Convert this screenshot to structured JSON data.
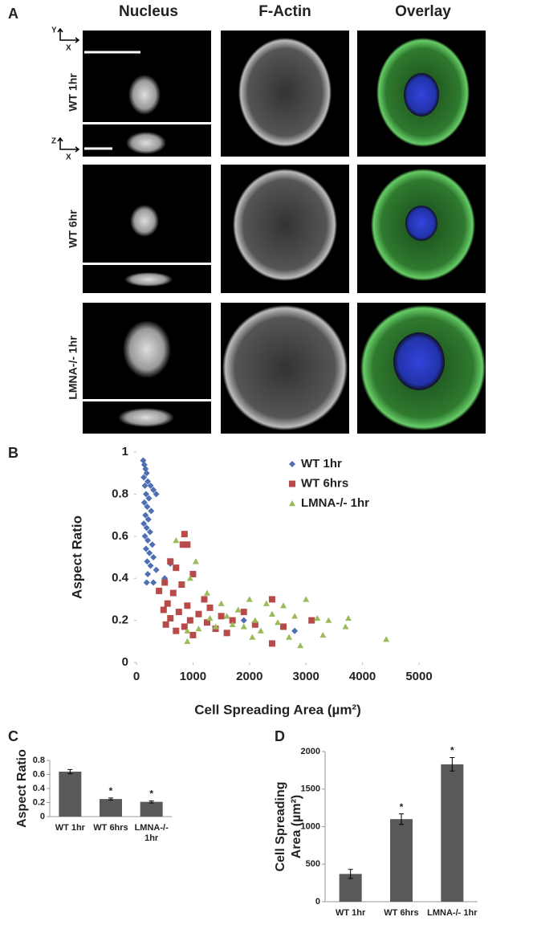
{
  "panel_a": {
    "label": "A",
    "columns": [
      "Nucleus",
      "F-Actin",
      "Overlay"
    ],
    "rows": [
      "WT 1hr",
      "WT 6hr",
      "LMNA-/- 1hr"
    ],
    "axes_xy": [
      "Y",
      "X"
    ],
    "axes_zx": [
      "Z",
      "X"
    ]
  },
  "chart_data": [
    {
      "type": "scatter",
      "panel": "B",
      "x_label": "Cell Spreading Area (µm²)",
      "y_label": "Aspect Ratio",
      "xlim": [
        0,
        5000
      ],
      "xticks": [
        0,
        1000,
        2000,
        3000,
        4000,
        5000
      ],
      "ylim": [
        0,
        1
      ],
      "yticks": [
        0,
        0.2,
        0.4,
        0.6,
        0.8,
        1
      ],
      "series": [
        {
          "name": "WT 1hr",
          "color": "#4f6fb5",
          "marker": "diamond",
          "x": [
            120,
            140,
            160,
            180,
            130,
            200,
            150,
            250,
            300,
            350,
            170,
            220,
            140,
            190,
            260,
            160,
            210,
            130,
            180,
            240,
            150,
            200,
            280,
            170,
            230,
            300,
            190,
            250,
            600,
            350,
            200,
            500,
            180,
            300,
            1900,
            2800
          ],
          "values": [
            0.96,
            0.94,
            0.92,
            0.9,
            0.88,
            0.86,
            0.84,
            0.84,
            0.82,
            0.8,
            0.8,
            0.78,
            0.76,
            0.74,
            0.72,
            0.7,
            0.68,
            0.66,
            0.64,
            0.62,
            0.6,
            0.58,
            0.56,
            0.54,
            0.52,
            0.5,
            0.48,
            0.46,
            0.47,
            0.44,
            0.42,
            0.4,
            0.38,
            0.38,
            0.2,
            0.15
          ]
        },
        {
          "name": "WT 6hrs",
          "color": "#b84a4a",
          "marker": "square",
          "x": [
            850,
            900,
            820,
            600,
            700,
            1000,
            500,
            800,
            400,
            650,
            1200,
            550,
            900,
            1300,
            480,
            750,
            1100,
            1500,
            600,
            950,
            1250,
            1700,
            520,
            850,
            1400,
            2100,
            700,
            1600,
            2400,
            2600,
            3100,
            2400,
            1000,
            1900
          ],
          "values": [
            0.61,
            0.56,
            0.56,
            0.48,
            0.45,
            0.42,
            0.38,
            0.37,
            0.34,
            0.33,
            0.3,
            0.28,
            0.27,
            0.26,
            0.25,
            0.24,
            0.23,
            0.22,
            0.21,
            0.2,
            0.19,
            0.2,
            0.18,
            0.17,
            0.16,
            0.18,
            0.15,
            0.14,
            0.3,
            0.17,
            0.2,
            0.09,
            0.13,
            0.24
          ]
        },
        {
          "name": "LMNA-/- 1hr",
          "color": "#9bbb59",
          "marker": "triangle",
          "x": [
            700,
            1050,
            950,
            1250,
            1500,
            1800,
            2000,
            2300,
            2600,
            3000,
            2800,
            3200,
            3750,
            4420,
            3700,
            2100,
            2500,
            1700,
            2200,
            1400,
            1100,
            900,
            2700,
            3300,
            2900,
            1600,
            2400,
            1900,
            2050,
            1300,
            900,
            3400
          ],
          "values": [
            0.58,
            0.48,
            0.4,
            0.33,
            0.28,
            0.25,
            0.3,
            0.28,
            0.27,
            0.3,
            0.22,
            0.21,
            0.21,
            0.11,
            0.17,
            0.2,
            0.19,
            0.18,
            0.15,
            0.17,
            0.16,
            0.15,
            0.12,
            0.13,
            0.08,
            0.22,
            0.23,
            0.17,
            0.12,
            0.21,
            0.1,
            0.2
          ]
        }
      ]
    },
    {
      "type": "bar",
      "panel": "C",
      "y_label": "Aspect Ratio",
      "color": "#595959",
      "categories": [
        "WT 1hr",
        "WT 6hrs",
        "LMNA-/- 1hr"
      ],
      "values": [
        0.64,
        0.25,
        0.21
      ],
      "errors": [
        0.03,
        0.015,
        0.015
      ],
      "annotations": [
        null,
        "*",
        "*"
      ],
      "ylim": [
        0,
        0.8
      ],
      "yticks": [
        0,
        0.2,
        0.4,
        0.6,
        0.8
      ]
    },
    {
      "type": "bar",
      "panel": "D",
      "y_label_lines": [
        "Cell Spreading",
        "Area (µm²)"
      ],
      "color": "#595959",
      "categories": [
        "WT 1hr",
        "WT 6hrs",
        "LMNA-/- 1hr"
      ],
      "values": [
        370,
        1100,
        1830
      ],
      "errors": [
        60,
        70,
        90
      ],
      "annotations": [
        null,
        "*",
        "*"
      ],
      "ylim": [
        0,
        2000
      ],
      "yticks": [
        0,
        500,
        1000,
        1500,
        2000
      ]
    }
  ]
}
